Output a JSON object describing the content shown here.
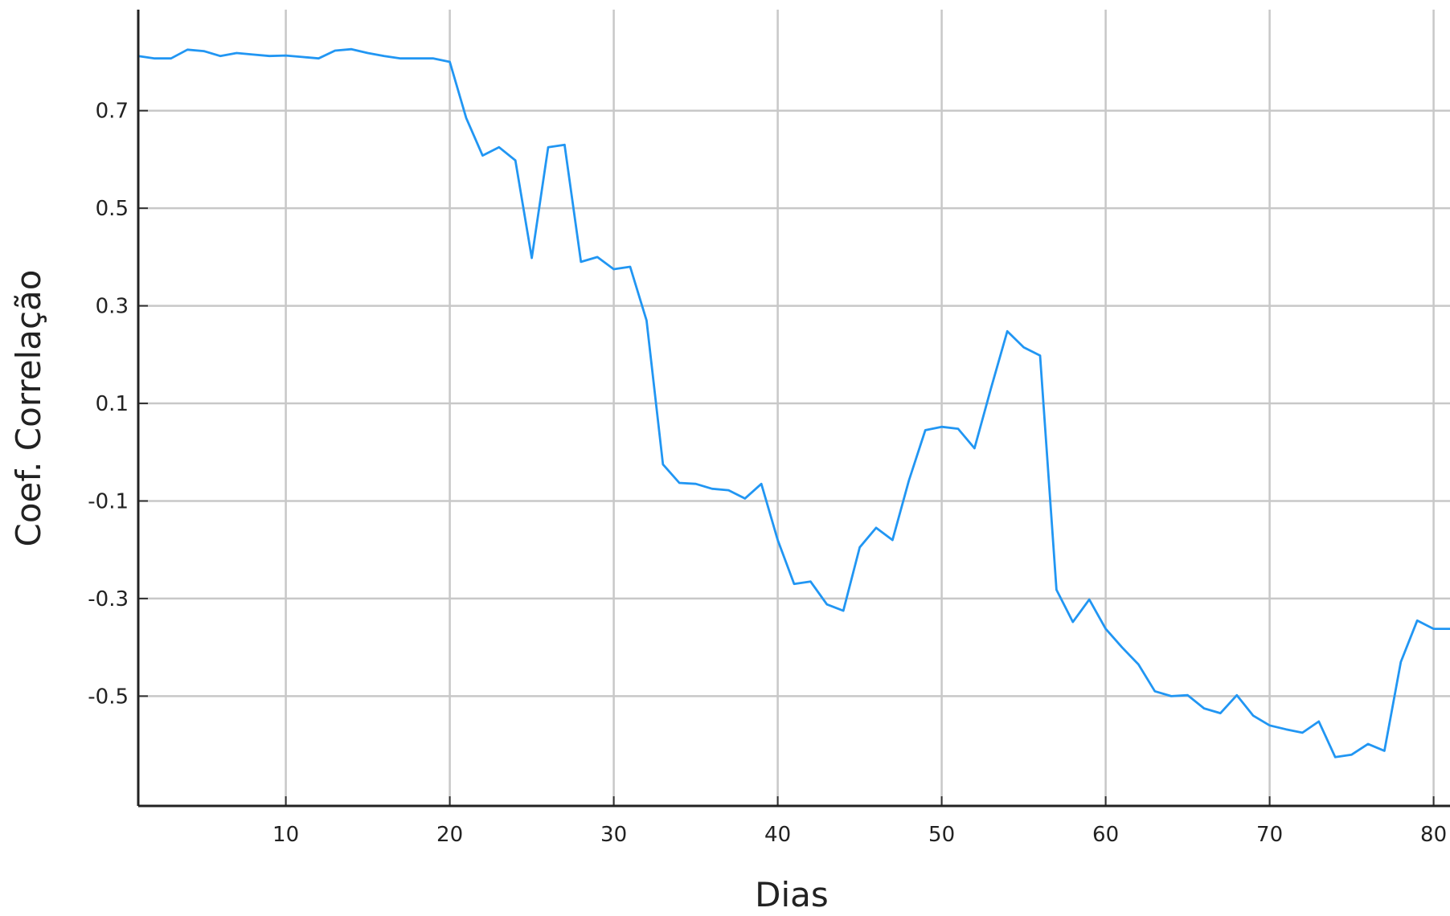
{
  "chart_data": {
    "type": "line",
    "xlabel": "Dias",
    "ylabel": "Coef. Correlação",
    "xlim": [
      1,
      81
    ],
    "ylim": [
      -0.725,
      0.907
    ],
    "x_ticks": [
      10,
      20,
      30,
      40,
      50,
      60,
      70,
      80
    ],
    "y_ticks": [
      -0.5,
      -0.3,
      -0.1,
      0.1,
      0.3,
      0.5,
      0.7
    ],
    "x_tick_labels": [
      "10",
      "20",
      "30",
      "40",
      "50",
      "60",
      "70",
      "80"
    ],
    "y_tick_labels": [
      "-0.5",
      "-0.3",
      "-0.1",
      "0.1",
      "0.3",
      "0.5",
      "0.7"
    ],
    "grid": true,
    "line_color": "#2196F3",
    "grid_color": "#c8c8c8",
    "series": [
      {
        "x": [
          1,
          2,
          3,
          4,
          5,
          6,
          7,
          8,
          9,
          10,
          11,
          12,
          13,
          14,
          15,
          16,
          17,
          18,
          19,
          20,
          21,
          22,
          23,
          24,
          25,
          26,
          27,
          28,
          29,
          30,
          31,
          32,
          33,
          34,
          35,
          36,
          37,
          38,
          39,
          40,
          41,
          42,
          43,
          44,
          45,
          46,
          47,
          48,
          49,
          50,
          51,
          52,
          53,
          54,
          55,
          56,
          57,
          58,
          59,
          60,
          61,
          62,
          63,
          64,
          65,
          66,
          67,
          68,
          69,
          70,
          71,
          72,
          73,
          74,
          75,
          76,
          77,
          78,
          79,
          80,
          81
        ],
        "values": [
          0.812,
          0.807,
          0.807,
          0.825,
          0.822,
          0.812,
          0.818,
          0.815,
          0.812,
          0.813,
          0.81,
          0.807,
          0.823,
          0.826,
          0.818,
          0.812,
          0.807,
          0.807,
          0.807,
          0.8,
          0.685,
          0.608,
          0.625,
          0.598,
          0.398,
          0.625,
          0.63,
          0.39,
          0.4,
          0.375,
          0.38,
          0.27,
          -0.025,
          -0.063,
          -0.065,
          -0.075,
          -0.078,
          -0.095,
          -0.065,
          -0.18,
          -0.27,
          -0.265,
          -0.312,
          -0.325,
          -0.195,
          -0.155,
          -0.18,
          -0.058,
          0.045,
          0.052,
          0.048,
          0.008,
          0.13,
          0.248,
          0.215,
          0.198,
          -0.282,
          -0.348,
          -0.302,
          -0.362,
          -0.4,
          -0.435,
          -0.49,
          -0.5,
          -0.498,
          -0.525,
          -0.535,
          -0.498,
          -0.54,
          -0.56,
          -0.568,
          -0.575,
          -0.552,
          -0.625,
          -0.62,
          -0.598,
          -0.612,
          -0.43,
          -0.345,
          -0.362,
          -0.362
        ]
      }
    ]
  }
}
